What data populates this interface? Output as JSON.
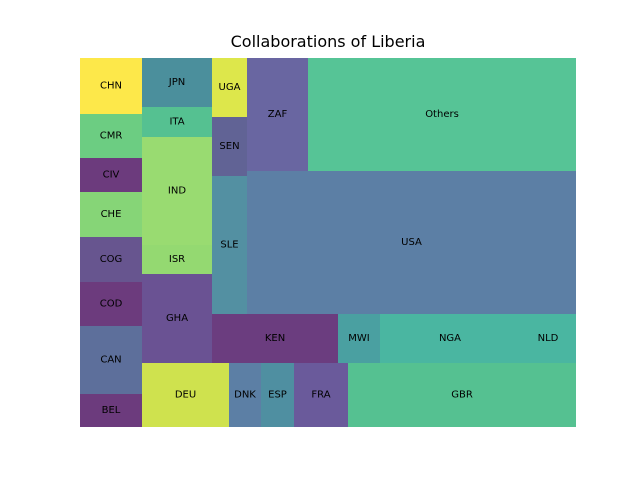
{
  "chart_data": {
    "type": "treemap",
    "title": "Collaborations of Liberia",
    "items": [
      {
        "label": "CHN",
        "color": "#fde84a"
      },
      {
        "label": "CMR",
        "color": "#6ccd82"
      },
      {
        "label": "CIV",
        "color": "#6c3b7d"
      },
      {
        "label": "CHE",
        "color": "#86d577"
      },
      {
        "label": "COG",
        "color": "#67558f"
      },
      {
        "label": "COD",
        "color": "#6c3b7d"
      },
      {
        "label": "CAN",
        "color": "#5d6f9b"
      },
      {
        "label": "BEL",
        "color": "#6c3b7d"
      },
      {
        "label": "JPN",
        "color": "#4b8f9c"
      },
      {
        "label": "ITA",
        "color": "#55c191"
      },
      {
        "label": "IND",
        "color": "#99db71"
      },
      {
        "label": "ISR",
        "color": "#94d971"
      },
      {
        "label": "GHA",
        "color": "#6a5293"
      },
      {
        "label": "UGA",
        "color": "#dde74b"
      },
      {
        "label": "SEN",
        "color": "#616395"
      },
      {
        "label": "SLE",
        "color": "#5390a2"
      },
      {
        "label": "ZAF",
        "color": "#6966a1"
      },
      {
        "label": "Others",
        "color": "#56c496"
      },
      {
        "label": "USA",
        "color": "#5c7fa5"
      },
      {
        "label": "KEN",
        "color": "#6b3d7f"
      },
      {
        "label": "MWI",
        "color": "#4aa0a1"
      },
      {
        "label": "NGA",
        "color": "#4ab6a1"
      },
      {
        "label": "NLD",
        "color": "#4ab6a1"
      },
      {
        "label": "DEU",
        "color": "#cfe24e"
      },
      {
        "label": "DNK",
        "color": "#5c7fa5"
      },
      {
        "label": "ESP",
        "color": "#4f8fa1"
      },
      {
        "label": "FRA",
        "color": "#6a5a9b"
      },
      {
        "label": "GBR",
        "color": "#55c191"
      }
    ]
  }
}
